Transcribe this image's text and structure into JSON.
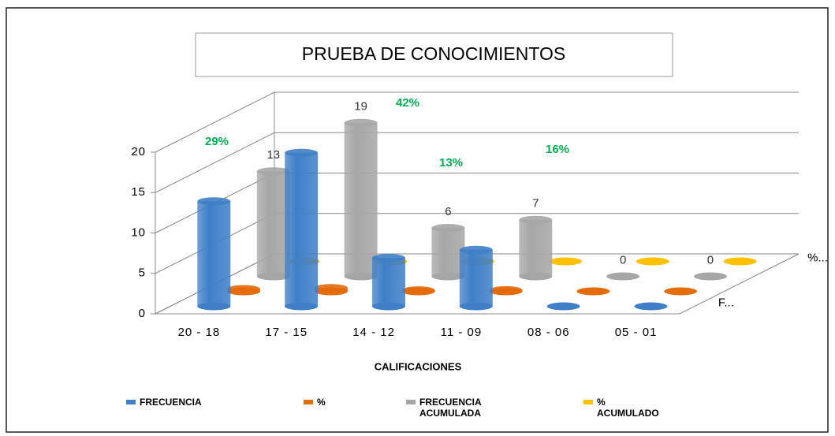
{
  "chart_data": {
    "type": "bar3d",
    "title": "PRUEBA DE CONOCIMIENTOS",
    "x_label": "CALIFICACIONES",
    "categories": [
      "20 - 18",
      "17 - 15",
      "14 - 12",
      "11 - 09",
      "08 - 06",
      "05 - 01"
    ],
    "depth_labels": [
      "F...",
      "%..."
    ],
    "series": [
      {
        "name": "FRECUENCIA",
        "color": "#3f7fc8",
        "values": [
          13,
          19,
          6,
          7,
          0,
          0
        ]
      },
      {
        "name": "%",
        "color": "#e46c0a",
        "values": [
          0.29,
          0.42,
          0.13,
          0.16,
          0,
          0
        ],
        "value_labels": [
          "29%",
          "42%",
          "13%",
          "16%",
          null,
          null
        ]
      },
      {
        "name": "FRECUENCIA ACUMULADA",
        "color": "#a6a6a6",
        "values": [
          13,
          19,
          6,
          7,
          0,
          0
        ]
      },
      {
        "name": "% ACUMULADO",
        "color": "#ffc000",
        "values": [
          0,
          0,
          0,
          0,
          0,
          0
        ]
      }
    ],
    "ylim": [
      0,
      20
    ],
    "yticks": [
      0,
      5,
      10,
      15,
      20
    ],
    "grid": true
  }
}
